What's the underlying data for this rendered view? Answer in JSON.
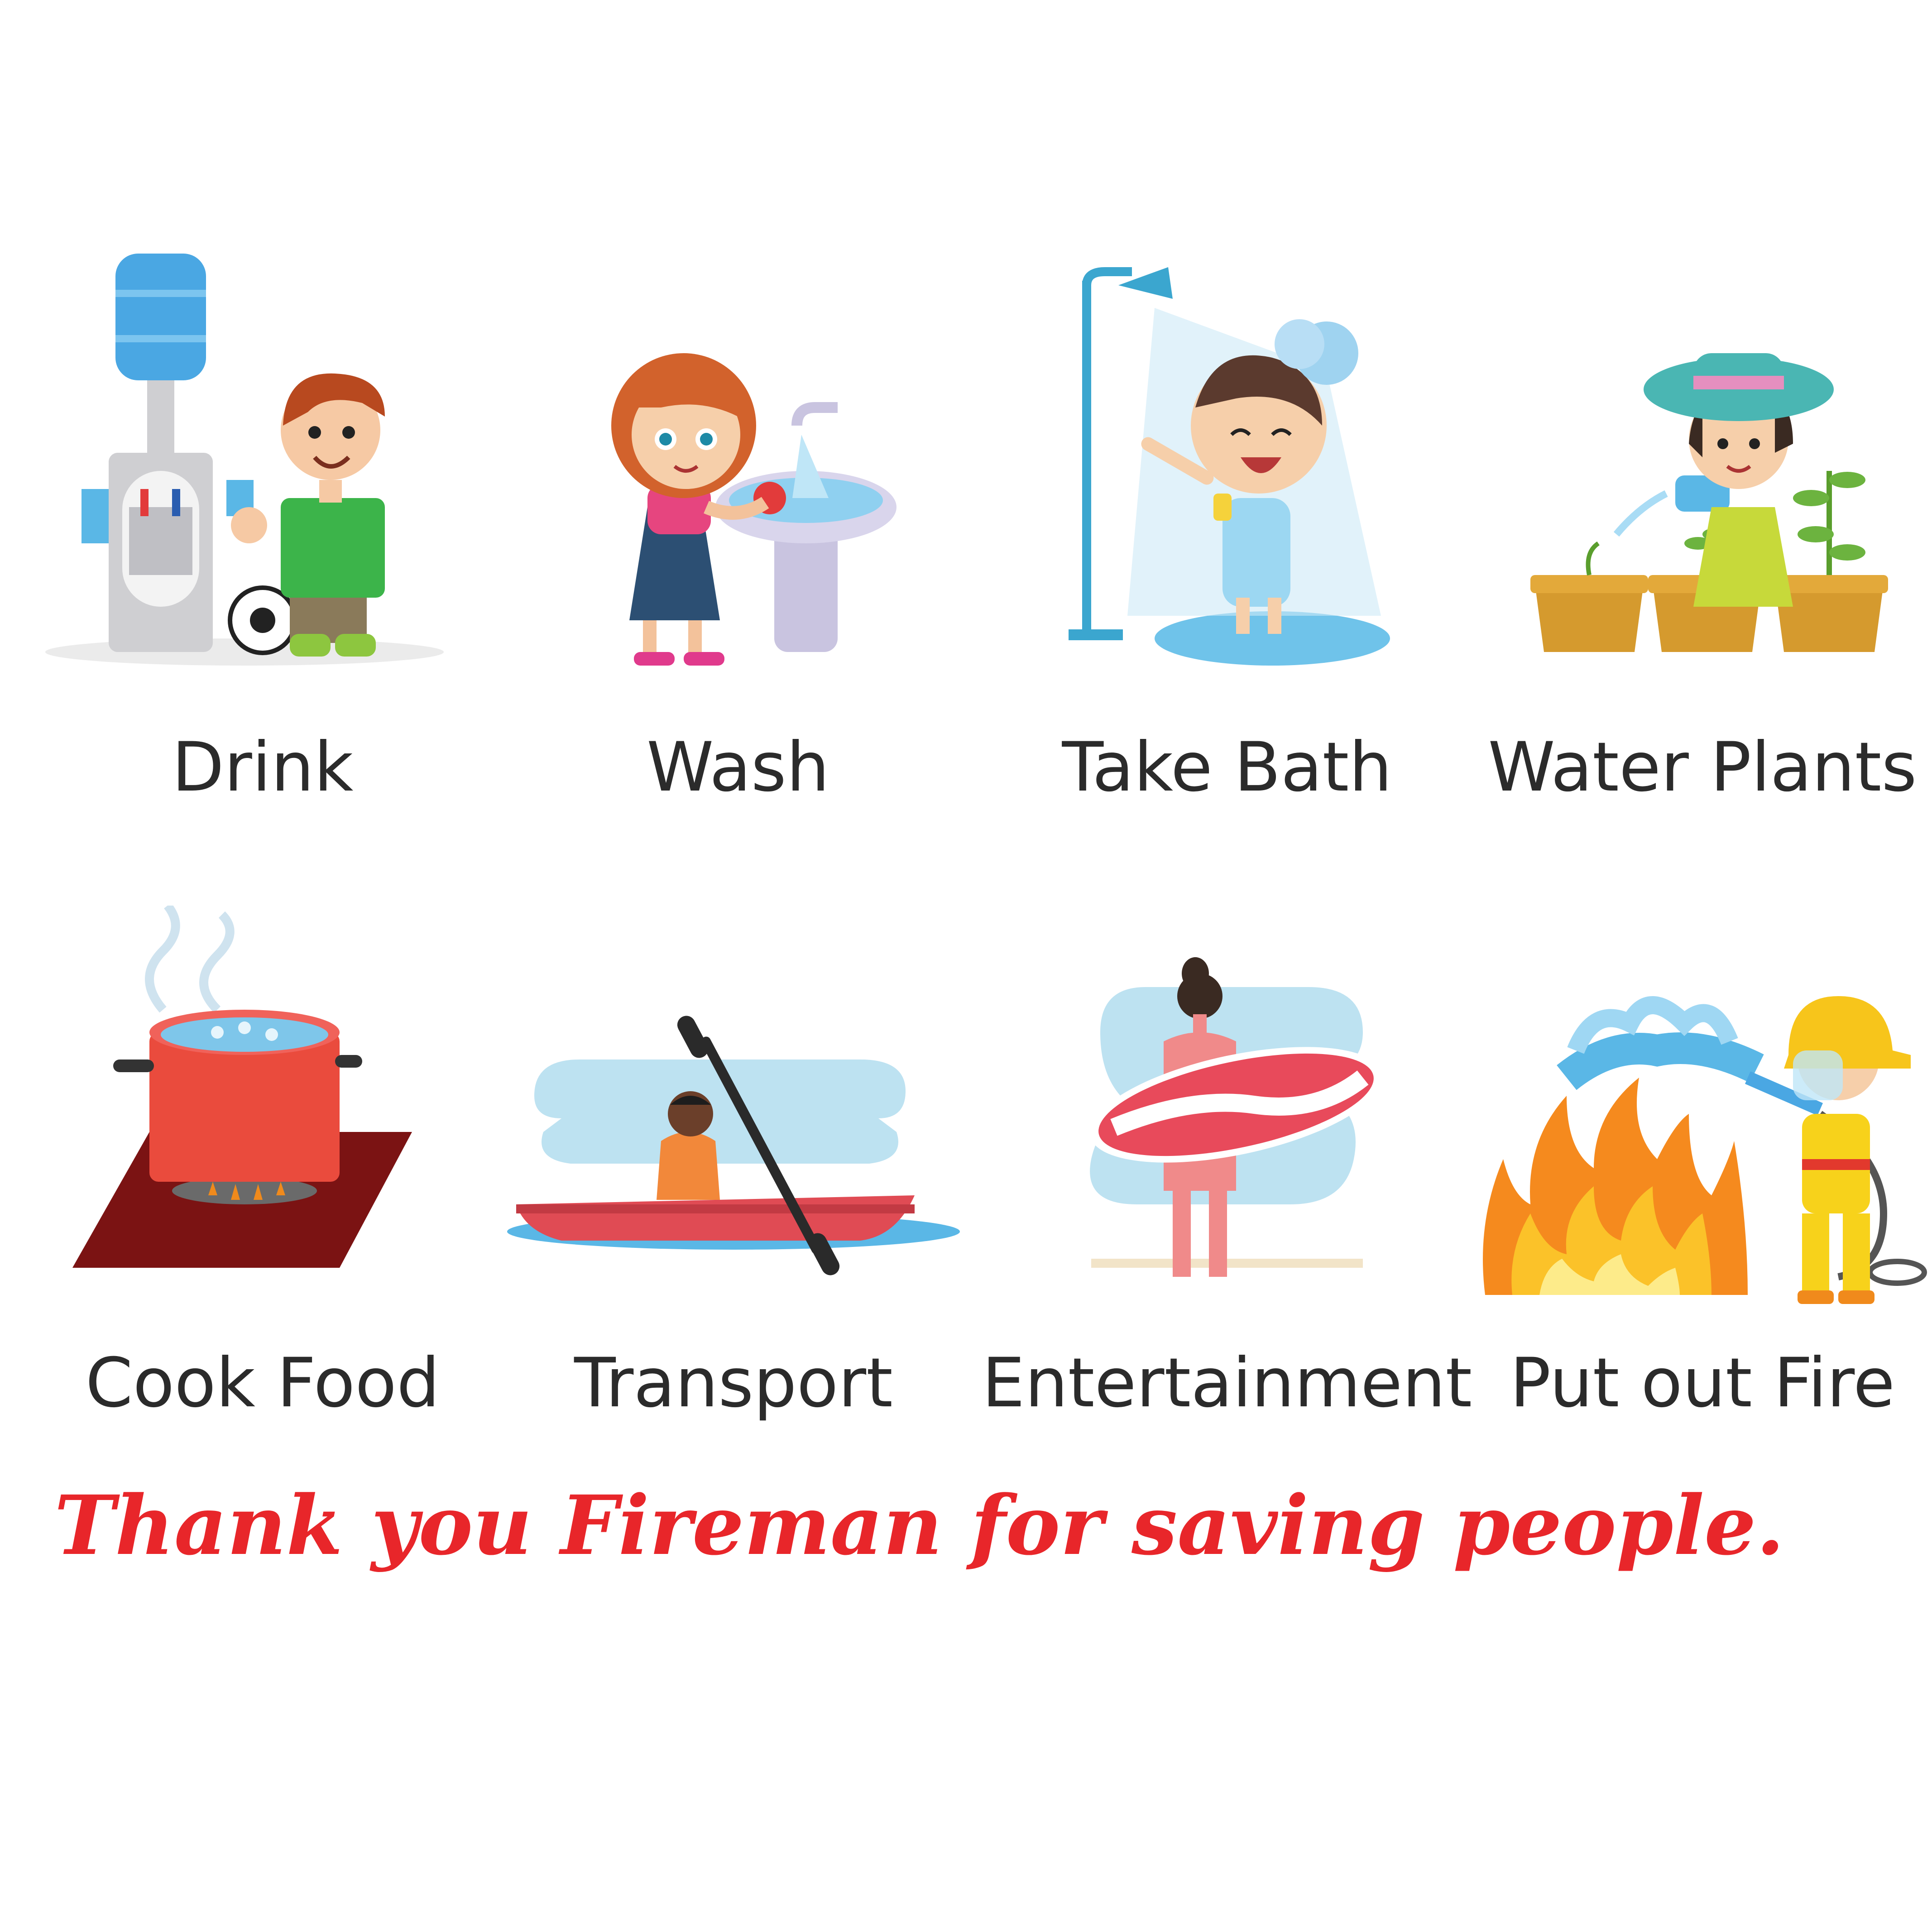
{
  "activities": [
    {
      "id": "drink",
      "label": "Drink",
      "icon": "water-cooler-boy-icon"
    },
    {
      "id": "wash",
      "label": "Wash",
      "icon": "girl-washing-apple-icon"
    },
    {
      "id": "take_bath",
      "label": "Take Bath",
      "icon": "child-shower-icon"
    },
    {
      "id": "water_plants",
      "label": "Water Plants",
      "icon": "girl-watering-plants-icon"
    },
    {
      "id": "cook_food",
      "label": "Cook Food",
      "icon": "boiling-pot-icon"
    },
    {
      "id": "transport",
      "label": "Transport",
      "icon": "kayak-icon"
    },
    {
      "id": "entertainment",
      "label": "Entertainment",
      "icon": "surfer-icon"
    },
    {
      "id": "put_out_fire",
      "label": "Put out Fire",
      "icon": "firefighter-hose-icon"
    }
  ],
  "footer": {
    "message": "Thank you Fireman for saving people."
  },
  "colors": {
    "accent": "#e8262a",
    "water": "#5ab7e6",
    "text": "#2b2b2b"
  }
}
